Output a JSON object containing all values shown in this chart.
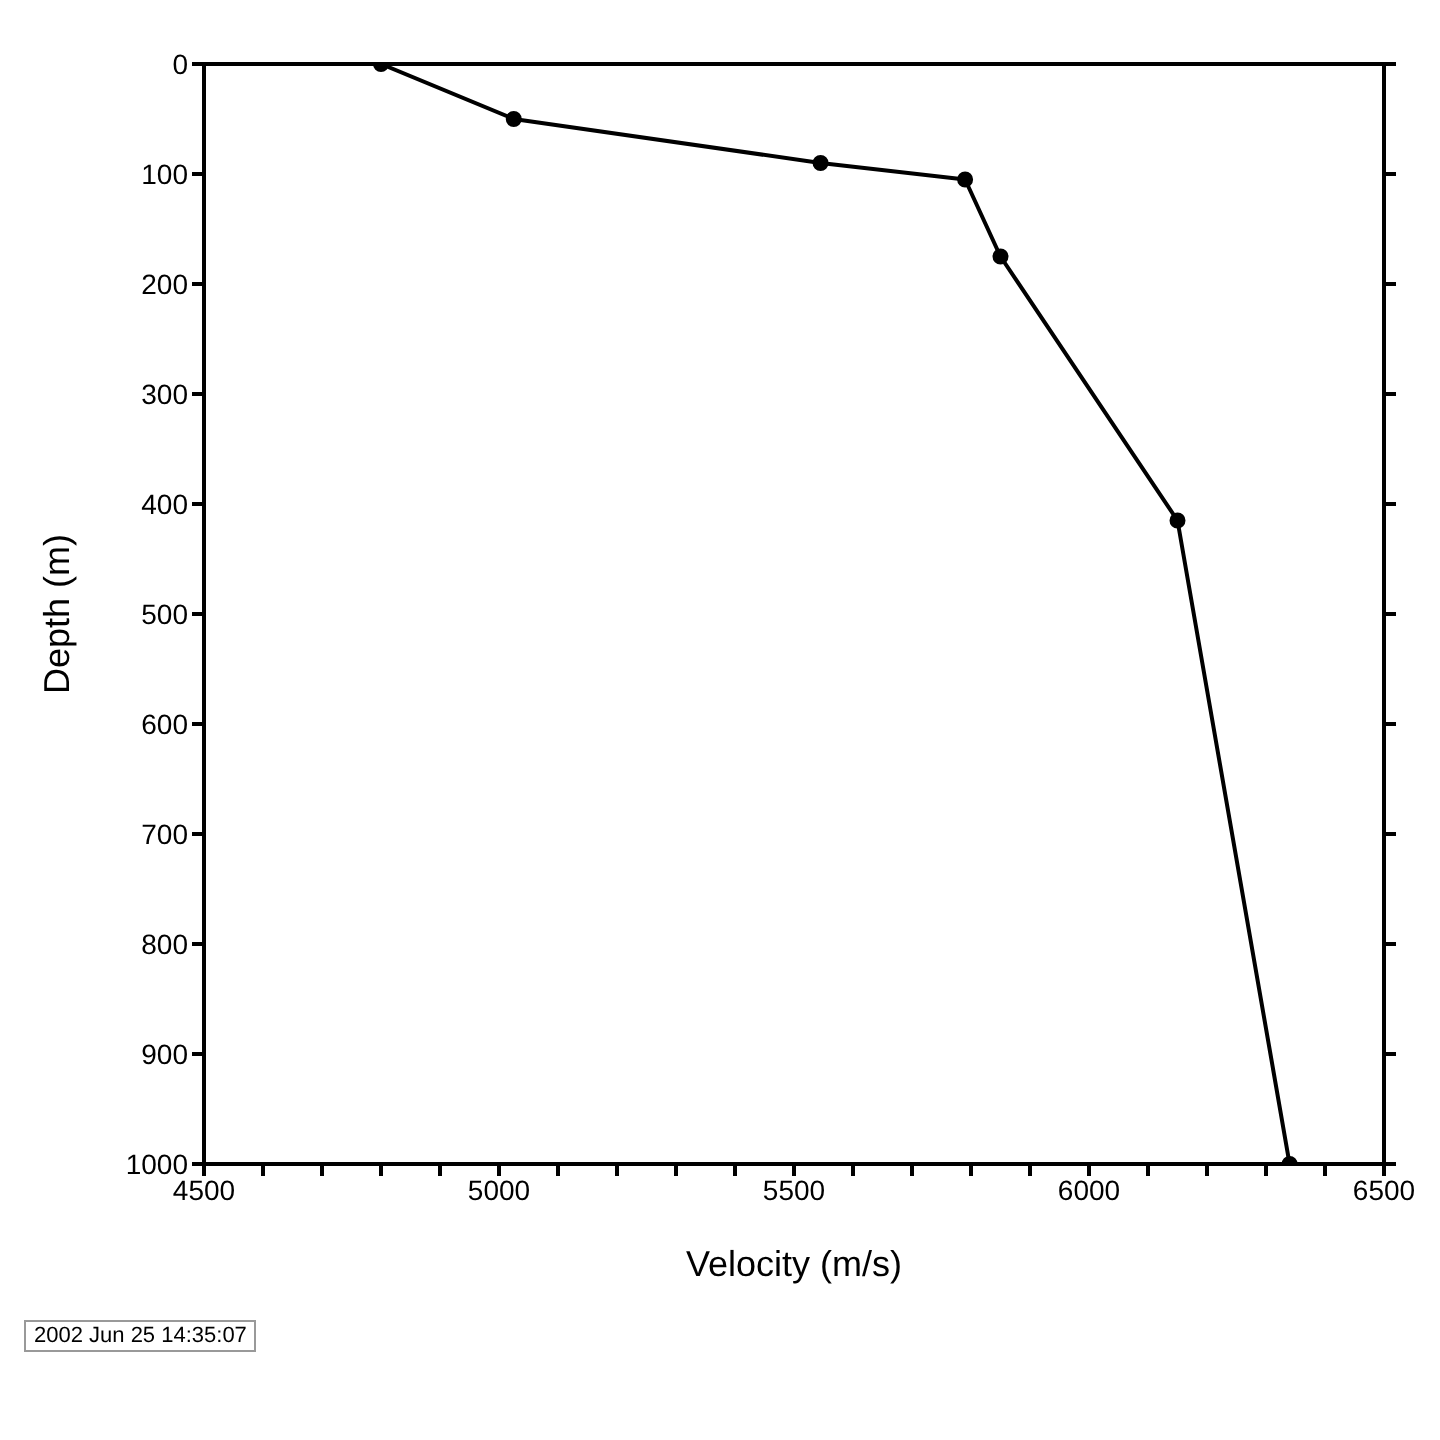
{
  "chart_data": {
    "type": "line",
    "xlabel": "Velocity (m/s)",
    "ylabel": "Depth (m)",
    "x": [
      4800,
      5025,
      5545,
      5790,
      5850,
      6150,
      6340
    ],
    "series": [
      {
        "color": "#000000",
        "values": [
          0,
          50,
          90,
          105,
          175,
          415,
          1000
        ]
      }
    ],
    "xlim": [
      4500,
      6500
    ],
    "xticks": [
      4500,
      {
        "value": 4600,
        "label": null
      },
      {
        "value": 4700,
        "label": null
      },
      {
        "value": 4800,
        "label": null
      },
      {
        "value": 4900,
        "label": null
      },
      5000,
      {
        "value": 5100,
        "label": null
      },
      {
        "value": 5200,
        "label": null
      },
      {
        "value": 5300,
        "label": null
      },
      {
        "value": 5400,
        "label": null
      },
      5500,
      {
        "value": 5600,
        "label": null
      },
      {
        "value": 5700,
        "label": null
      },
      {
        "value": 5800,
        "label": null
      },
      {
        "value": 5900,
        "label": null
      },
      6000,
      {
        "value": 6100,
        "label": null
      },
      {
        "value": 6200,
        "label": null
      },
      {
        "value": 6300,
        "label": null
      },
      {
        "value": 6400,
        "label": null
      },
      6500
    ],
    "ylim": [
      1000,
      0
    ],
    "yticks": [
      0,
      100,
      200,
      300,
      400,
      500,
      600,
      700,
      800,
      900,
      1000
    ],
    "grid": false,
    "legend": false,
    "marker": "circle",
    "line_style": "solid",
    "annotations": [
      "2002 Jun 25 14:35:07"
    ]
  }
}
